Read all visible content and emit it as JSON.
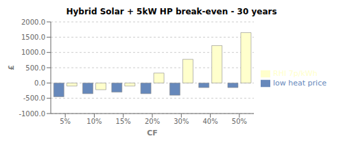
{
  "chart_data": {
    "type": "bar",
    "title": "Hybrid Solar + 5kW HP break-even - 30 years",
    "xlabel": "CF",
    "ylabel": "£",
    "categories": [
      "5%",
      "10%",
      "15%",
      "20%",
      "30%",
      "40%",
      "50%"
    ],
    "series": [
      {
        "name": "low heat price",
        "color": "#6688BB",
        "values": [
          -450,
          -350,
          -300,
          -350,
          -400,
          -150,
          -150
        ]
      },
      {
        "name": "RHI 7p/kWh",
        "color": "#FFFFCC",
        "values": [
          -100,
          -220,
          -100,
          325,
          775,
          1225,
          1650
        ]
      }
    ],
    "ylim": [
      -1000,
      2000
    ],
    "yticks": [
      {
        "value": -1000,
        "label": "-1000.0"
      },
      {
        "value": -500,
        "label": "-500.0"
      },
      {
        "value": 0,
        "label": "0.0"
      },
      {
        "value": 500,
        "label": "500.0"
      },
      {
        "value": 1000,
        "label": "1000.0"
      },
      {
        "value": 1500,
        "label": "1500.0"
      },
      {
        "value": 2000,
        "label": "2000.0"
      }
    ],
    "grid": true,
    "legend": "right"
  }
}
